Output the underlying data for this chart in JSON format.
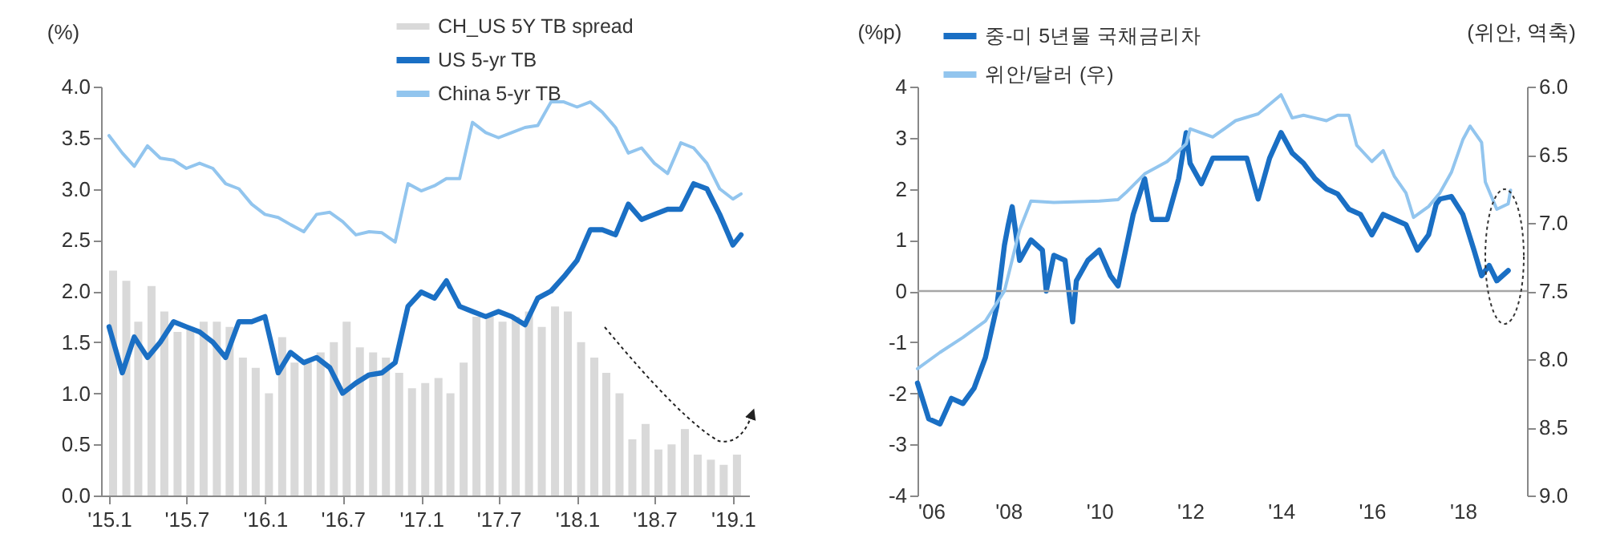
{
  "chart_data": [
    {
      "type": "line",
      "ylabel": "(%)",
      "legend": "top",
      "grid": false,
      "xlim": [
        "2015-01",
        "2019-01-20"
      ],
      "xticks": [
        {
          "value": "2015-01",
          "label": "'15.1"
        },
        {
          "value": "2015-07",
          "label": "'15.7"
        },
        {
          "value": "2016-01",
          "label": "'16.1"
        },
        {
          "value": "2016-07",
          "label": "'16.7"
        },
        {
          "value": "2017-01",
          "label": "'17.1"
        },
        {
          "value": "2017-07",
          "label": "'17.7"
        },
        {
          "value": "2018-01",
          "label": "'18.1"
        },
        {
          "value": "2018-07",
          "label": "'18.7"
        },
        {
          "value": "2019-01",
          "label": "'19.1"
        }
      ],
      "ylim": [
        0,
        4
      ],
      "yticks": [
        {
          "value": 0,
          "label": "0.0"
        },
        {
          "value": 0.5,
          "label": "0.5"
        },
        {
          "value": 1,
          "label": "1.0"
        },
        {
          "value": 1.5,
          "label": "1.5"
        },
        {
          "value": 2,
          "label": "2.0"
        },
        {
          "value": 2.5,
          "label": "2.5"
        },
        {
          "value": 3,
          "label": "3.0"
        },
        {
          "value": 3.5,
          "label": "3.5"
        },
        {
          "value": 4,
          "label": "4.0"
        }
      ],
      "series": [
        {
          "name": "CH_US 5Y TB spread",
          "type": "bar",
          "color": "#d9d9d9",
          "x": [
            "2015-01",
            "2015-02",
            "2015-03",
            "2015-04",
            "2015-05",
            "2015-06",
            "2015-07",
            "2015-08",
            "2015-09",
            "2015-10",
            "2015-11",
            "2015-12",
            "2016-01",
            "2016-02",
            "2016-03",
            "2016-04",
            "2016-05",
            "2016-06",
            "2016-07",
            "2016-08",
            "2016-09",
            "2016-10",
            "2016-11",
            "2016-12",
            "2017-01",
            "2017-02",
            "2017-03",
            "2017-04",
            "2017-05",
            "2017-06",
            "2017-07",
            "2017-08",
            "2017-09",
            "2017-10",
            "2017-11",
            "2017-12",
            "2018-01",
            "2018-02",
            "2018-03",
            "2018-04",
            "2018-05",
            "2018-06",
            "2018-07",
            "2018-08",
            "2018-09",
            "2018-10",
            "2018-11",
            "2018-12",
            "2019-01"
          ],
          "values": [
            2.2,
            2.1,
            1.7,
            2.05,
            1.8,
            1.6,
            1.65,
            1.7,
            1.7,
            1.65,
            1.35,
            1.25,
            1.0,
            1.55,
            1.3,
            1.3,
            1.4,
            1.5,
            1.7,
            1.45,
            1.4,
            1.35,
            1.2,
            1.05,
            1.1,
            1.15,
            1.0,
            1.3,
            1.75,
            1.75,
            1.7,
            1.75,
            1.8,
            1.65,
            1.85,
            1.8,
            1.5,
            1.35,
            1.2,
            1.0,
            0.55,
            0.7,
            0.45,
            0.5,
            0.65,
            0.4,
            0.35,
            0.3,
            0.4
          ]
        },
        {
          "name": "US 5-yr TB",
          "color": "#1a6fc4",
          "x": [
            "2015-01",
            "2015-02",
            "2015-03",
            "2015-04",
            "2015-05",
            "2015-06",
            "2015-07",
            "2015-08",
            "2015-09",
            "2015-10",
            "2015-11",
            "2015-12",
            "2016-01",
            "2016-02",
            "2016-03",
            "2016-04",
            "2016-05",
            "2016-06",
            "2016-07",
            "2016-08",
            "2016-09",
            "2016-10",
            "2016-11",
            "2016-12",
            "2017-01",
            "2017-02",
            "2017-03",
            "2017-04",
            "2017-05",
            "2017-06",
            "2017-07",
            "2017-08",
            "2017-09",
            "2017-10",
            "2017-11",
            "2017-12",
            "2018-01",
            "2018-02",
            "2018-03",
            "2018-04",
            "2018-05",
            "2018-06",
            "2018-07",
            "2018-08",
            "2018-09",
            "2018-10",
            "2018-11",
            "2018-12",
            "2019-01",
            "2019-01-20"
          ],
          "values": [
            1.65,
            1.2,
            1.55,
            1.35,
            1.5,
            1.7,
            1.65,
            1.6,
            1.5,
            1.35,
            1.7,
            1.7,
            1.75,
            1.2,
            1.4,
            1.3,
            1.35,
            1.25,
            1.0,
            1.1,
            1.18,
            1.2,
            1.3,
            1.85,
            1.99,
            1.93,
            2.1,
            1.85,
            1.8,
            1.75,
            1.8,
            1.75,
            1.67,
            1.93,
            2.0,
            2.14,
            2.3,
            2.6,
            2.6,
            2.55,
            2.85,
            2.7,
            2.75,
            2.8,
            2.8,
            3.05,
            3.0,
            2.75,
            2.45,
            2.55
          ]
        },
        {
          "name": "China 5-yr TB",
          "color": "#92c5ee",
          "x": [
            "2015-01",
            "2015-02",
            "2015-03",
            "2015-04",
            "2015-05",
            "2015-06",
            "2015-07",
            "2015-08",
            "2015-09",
            "2015-10",
            "2015-11",
            "2015-12",
            "2016-01",
            "2016-02",
            "2016-03",
            "2016-04",
            "2016-05",
            "2016-06",
            "2016-07",
            "2016-08",
            "2016-09",
            "2016-10",
            "2016-11",
            "2016-12",
            "2017-01",
            "2017-02",
            "2017-03",
            "2017-04",
            "2017-05",
            "2017-06",
            "2017-07",
            "2017-08",
            "2017-09",
            "2017-10",
            "2017-11",
            "2017-12",
            "2018-01",
            "2018-02",
            "2018-03",
            "2018-04",
            "2018-05",
            "2018-06",
            "2018-07",
            "2018-08",
            "2018-09",
            "2018-10",
            "2018-11",
            "2018-12",
            "2019-01",
            "2019-01-20"
          ],
          "values": [
            3.52,
            3.35,
            3.22,
            3.42,
            3.3,
            3.28,
            3.2,
            3.25,
            3.2,
            3.05,
            3.0,
            2.85,
            2.75,
            2.72,
            2.65,
            2.58,
            2.75,
            2.77,
            2.68,
            2.55,
            2.58,
            2.57,
            2.48,
            3.05,
            2.98,
            3.03,
            3.1,
            3.1,
            3.65,
            3.55,
            3.5,
            3.55,
            3.6,
            3.62,
            3.85,
            3.85,
            3.8,
            3.85,
            3.75,
            3.6,
            3.35,
            3.4,
            3.25,
            3.15,
            3.45,
            3.4,
            3.25,
            3.0,
            2.9,
            2.95
          ]
        }
      ]
    },
    {
      "type": "line",
      "ylabel": "(%p)",
      "y2label": "(위안, 역축)",
      "legend": "top",
      "grid": false,
      "xlim": [
        "2006-01",
        "2019-06"
      ],
      "xticks": [
        {
          "value": "2006-01",
          "label": "'06"
        },
        {
          "value": "2008-01",
          "label": "'08"
        },
        {
          "value": "2010-01",
          "label": "'10"
        },
        {
          "value": "2012-01",
          "label": "'12"
        },
        {
          "value": "2014-01",
          "label": "'14"
        },
        {
          "value": "2016-01",
          "label": "'16"
        },
        {
          "value": "2018-01",
          "label": "'18"
        }
      ],
      "ylim": [
        -4,
        4
      ],
      "yticks": [
        -4,
        -3,
        -2,
        -1,
        0,
        1,
        2,
        3,
        4
      ],
      "y2lim": [
        9,
        6
      ],
      "y2ticks": [
        {
          "value": 6,
          "label": "6.0"
        },
        {
          "value": 6.5,
          "label": "6.5"
        },
        {
          "value": 7,
          "label": "7.0"
        },
        {
          "value": 7.5,
          "label": "7.5"
        },
        {
          "value": 8,
          "label": "8.0"
        },
        {
          "value": 8.5,
          "label": "8.5"
        },
        {
          "value": 9,
          "label": "9.0"
        }
      ],
      "ref_lines": [
        {
          "axis": "y",
          "value": 0,
          "color": "#a6a6a6"
        }
      ],
      "series": [
        {
          "name": "중-미 5년물 국채금리차",
          "color": "#1a6fc4",
          "x": [
            "2006-01",
            "2006-04",
            "2006-07",
            "2006-10",
            "2007-01",
            "2007-04",
            "2007-07",
            "2007-10",
            "2007-12",
            "2008-01",
            "2008-02",
            "2008-04",
            "2008-07",
            "2008-10",
            "2008-11",
            "2009-01",
            "2009-04",
            "2009-06",
            "2009-07",
            "2009-10",
            "2010-01",
            "2010-04",
            "2010-06",
            "2010-08",
            "2010-10",
            "2011-01",
            "2011-03",
            "2011-07",
            "2011-10",
            "2011-12",
            "2012-01",
            "2012-04",
            "2012-07",
            "2012-10",
            "2013-01",
            "2013-04",
            "2013-07",
            "2013-10",
            "2014-01",
            "2014-04",
            "2014-07",
            "2014-10",
            "2015-01",
            "2015-04",
            "2015-07",
            "2015-10",
            "2016-01",
            "2016-04",
            "2016-07",
            "2016-10",
            "2017-01",
            "2017-04",
            "2017-06",
            "2017-07",
            "2017-10",
            "2018-01",
            "2018-04",
            "2018-06",
            "2018-08",
            "2018-10",
            "2019-01"
          ],
          "values": [
            -1.8,
            -2.5,
            -2.6,
            -2.1,
            -2.2,
            -1.9,
            -1.3,
            -0.3,
            0.9,
            1.3,
            1.65,
            0.6,
            1.0,
            0.8,
            0.0,
            0.7,
            0.6,
            -0.6,
            0.2,
            0.6,
            0.8,
            0.3,
            0.1,
            0.8,
            1.5,
            2.2,
            1.4,
            1.4,
            2.2,
            3.1,
            2.5,
            2.1,
            2.6,
            2.6,
            2.6,
            2.6,
            1.8,
            2.6,
            3.1,
            2.7,
            2.5,
            2.2,
            2.0,
            1.9,
            1.6,
            1.5,
            1.1,
            1.5,
            1.4,
            1.3,
            0.8,
            1.1,
            1.7,
            1.8,
            1.85,
            1.5,
            0.8,
            0.3,
            0.5,
            0.2,
            0.4
          ]
        },
        {
          "name": "위안/달러 (우)",
          "color": "#92c5ee",
          "axis": "y2",
          "x": [
            "2006-01",
            "2006-07",
            "2007-01",
            "2007-07",
            "2007-12",
            "2008-04",
            "2008-07",
            "2009-01",
            "2010-01",
            "2010-06",
            "2010-08",
            "2011-01",
            "2011-07",
            "2011-12",
            "2012-01",
            "2012-07",
            "2013-01",
            "2013-07",
            "2014-01",
            "2014-04",
            "2014-07",
            "2014-10",
            "2015-01",
            "2015-04",
            "2015-07",
            "2015-09",
            "2016-01",
            "2016-04",
            "2016-07",
            "2016-10",
            "2016-12",
            "2017-04",
            "2017-07",
            "2017-10",
            "2018-01",
            "2018-03",
            "2018-06",
            "2018-07",
            "2018-10",
            "2019-01",
            "2019-01-20"
          ],
          "values": [
            8.07,
            7.95,
            7.84,
            7.72,
            7.5,
            7.05,
            6.84,
            6.85,
            6.84,
            6.83,
            6.78,
            6.64,
            6.55,
            6.42,
            6.31,
            6.37,
            6.25,
            6.2,
            6.06,
            6.23,
            6.21,
            6.23,
            6.25,
            6.21,
            6.21,
            6.43,
            6.55,
            6.47,
            6.66,
            6.78,
            6.96,
            6.88,
            6.78,
            6.63,
            6.39,
            6.29,
            6.41,
            6.7,
            6.9,
            6.86,
            6.76
          ]
        }
      ]
    }
  ]
}
